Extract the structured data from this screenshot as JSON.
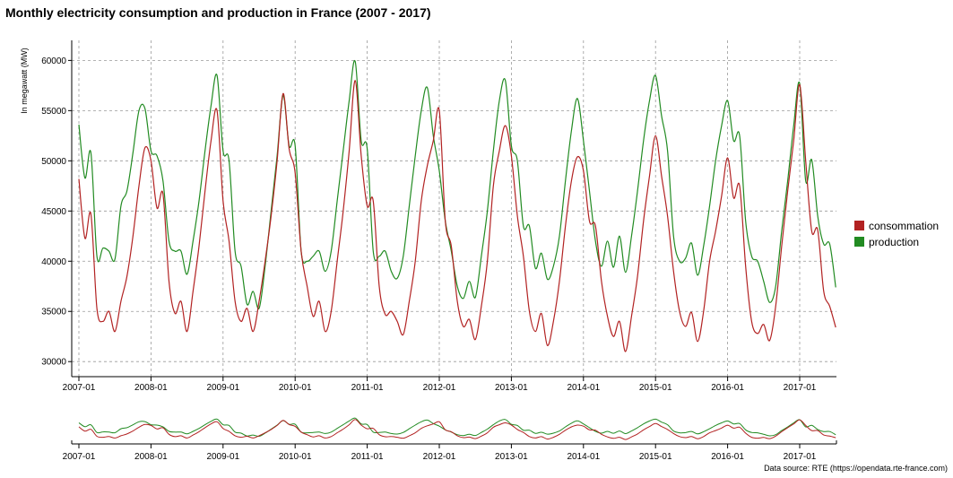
{
  "chart_data": {
    "type": "line",
    "title": "Monthly electricity consumption and production in France (2007 - 2017)",
    "ylabel": "In megawatt (MW)",
    "xlabel": "",
    "source": "Data source: RTE (https://opendata.rte-france.com)",
    "ylim": [
      28500,
      62000
    ],
    "xlim": [
      0,
      127
    ],
    "grid": true,
    "legend_position": "right",
    "y_ticks": [
      30000,
      35000,
      40000,
      45000,
      50000,
      55000,
      60000
    ],
    "x_ticks": [
      "2007-01",
      "2008-01",
      "2009-01",
      "2010-01",
      "2011-01",
      "2012-01",
      "2013-01",
      "2014-01",
      "2015-01",
      "2016-01",
      "2017-01"
    ],
    "x_tick_index": [
      0,
      12,
      24,
      36,
      48,
      60,
      72,
      84,
      96,
      108,
      120
    ],
    "series": [
      {
        "name": "consommation",
        "color": "#b22222",
        "values": [
          48200,
          42300,
          44700,
          35300,
          34000,
          35000,
          33000,
          36000,
          38500,
          42500,
          47500,
          51300,
          50000,
          45300,
          46700,
          38000,
          34800,
          36000,
          33000,
          37000,
          41500,
          47000,
          52000,
          55000,
          46000,
          42000,
          36000,
          34000,
          35300,
          33000,
          36000,
          40000,
          44500,
          50000,
          56700,
          51200,
          48800,
          41000,
          37500,
          34500,
          36000,
          33000,
          35000,
          40000,
          45000,
          51000,
          58000,
          50500,
          45500,
          46000,
          37500,
          34700,
          35000,
          34000,
          32700,
          36000,
          40000,
          46000,
          49500,
          52000,
          55000,
          44000,
          41500,
          36000,
          33500,
          34200,
          32200,
          35500,
          40000,
          47500,
          51000,
          53500,
          50500,
          44500,
          40500,
          35000,
          33000,
          34800,
          31600,
          34000,
          38000,
          43500,
          48000,
          50400,
          49000,
          44000,
          43500,
          38000,
          34500,
          32500,
          34000,
          31000,
          34500,
          38500,
          44000,
          48500,
          52500,
          48500,
          44500,
          39000,
          35000,
          33500,
          34900,
          32000,
          35000,
          40000,
          43000,
          46500,
          50300,
          46300,
          47500,
          39500,
          34000,
          32800,
          33700,
          32100,
          35500,
          41500,
          47000,
          52000,
          57600,
          50000,
          43000,
          43100,
          37000,
          35500,
          33400
        ]
      },
      {
        "name": "production",
        "color": "#228b22",
        "values": [
          53600,
          48300,
          50800,
          40500,
          41300,
          41000,
          40200,
          45500,
          47000,
          50800,
          55000,
          55200,
          51000,
          50500,
          48000,
          42000,
          41000,
          41000,
          38700,
          42000,
          46000,
          51000,
          55500,
          58500,
          51000,
          50000,
          41000,
          39500,
          35700,
          37000,
          35300,
          39500,
          45000,
          50500,
          56500,
          51500,
          51500,
          41000,
          40000,
          40500,
          41000,
          39000,
          41000,
          46000,
          51000,
          56000,
          59900,
          52000,
          51200,
          41000,
          40500,
          41000,
          39000,
          38300,
          40500,
          45500,
          50500,
          55000,
          57300,
          52500,
          49000,
          44000,
          41000,
          37500,
          36300,
          38000,
          36400,
          40500,
          45000,
          51000,
          56000,
          58000,
          51500,
          50000,
          43500,
          43500,
          39300,
          40800,
          38200,
          39500,
          42500,
          48000,
          53000,
          56200,
          52000,
          47000,
          42000,
          39500,
          42000,
          39400,
          42500,
          38900,
          42500,
          47000,
          52000,
          56000,
          58500,
          54500,
          51000,
          42500,
          40000,
          40300,
          41800,
          38600,
          41500,
          45500,
          50000,
          53500,
          56000,
          52000,
          52500,
          44000,
          40500,
          40000,
          38000,
          35900,
          37500,
          43000,
          48000,
          53500,
          57700,
          48000,
          50100,
          44500,
          41700,
          41700,
          37400
        ]
      }
    ]
  }
}
